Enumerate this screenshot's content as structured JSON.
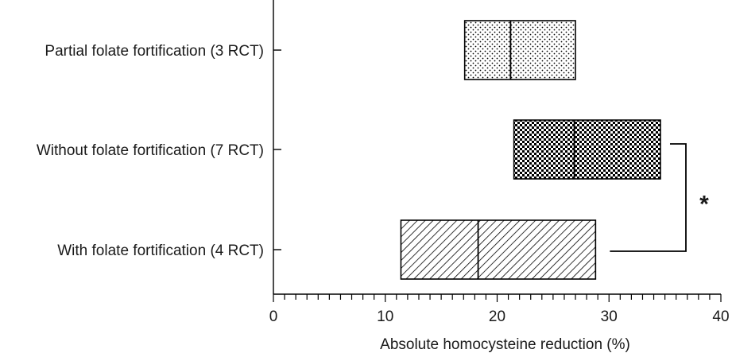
{
  "chart_data": {
    "type": "box",
    "orientation": "horizontal",
    "xlabel": "Absolute homocysteine reduction (%)",
    "xlim": [
      0,
      40
    ],
    "xticks": [
      0,
      10,
      20,
      30,
      40
    ],
    "minor_tick_step": 1,
    "grid": false,
    "categories": [
      {
        "label": "Partial folate fortification (3 RCT)",
        "low": 17.1,
        "median": 21.2,
        "high": 27.0,
        "pattern": "dots",
        "color": "#000000"
      },
      {
        "label": "Without folate fortification (7 RCT)",
        "low": 21.5,
        "median": 26.9,
        "high": 34.6,
        "pattern": "checker",
        "color": "#000000"
      },
      {
        "label": "With folate fortification (4 RCT)",
        "low": 11.4,
        "median": 18.3,
        "high": 28.8,
        "pattern": "diagonal",
        "color": "#000000"
      }
    ],
    "significance": {
      "between": [
        1,
        2
      ],
      "label": "*"
    }
  }
}
